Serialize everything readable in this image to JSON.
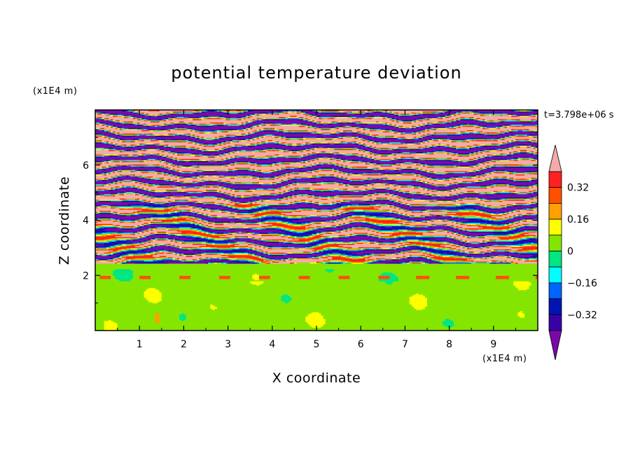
{
  "chart_data": {
    "type": "heatmap",
    "title": "potential temperature deviation",
    "xlabel": "X coordinate",
    "ylabel": "Z coordinate",
    "x_unit": "(x1E4 m)",
    "y_unit": "(x1E4 m)",
    "time_label": "t=3.798e+06 s",
    "xlim": [
      0,
      10
    ],
    "ylim": [
      0,
      8
    ],
    "x_ticks": [
      1,
      2,
      3,
      4,
      5,
      6,
      7,
      8,
      9
    ],
    "x_tick_labels": [
      "1",
      "2",
      "3",
      "4",
      "5",
      "6",
      "7",
      "8",
      "9"
    ],
    "y_ticks": [
      2,
      4,
      6
    ],
    "y_tick_labels": [
      "2",
      "4",
      "6"
    ],
    "colorbar": {
      "levels": [
        -0.4,
        -0.32,
        -0.24,
        -0.16,
        -0.08,
        0,
        0.08,
        0.16,
        0.24,
        0.32,
        0.4
      ],
      "tick_values": [
        0.32,
        0.16,
        0,
        -0.16,
        -0.32
      ],
      "tick_labels": [
        "0.32",
        "0.16",
        "0",
        "−0.16",
        "−0.32"
      ],
      "colors": [
        "#7a0aa8",
        "#3a00a8",
        "#0014b4",
        "#0064ff",
        "#00ffff",
        "#00e682",
        "#84e600",
        "#ffff00",
        "#ffa000",
        "#ff5000",
        "#ff2020",
        "#f4aaaa"
      ],
      "under_color": "#7a0aa8",
      "over_color": "#f4aaaa"
    },
    "regions": {
      "lower_layer": {
        "z_range": [
          0,
          2.4
        ],
        "dominant_values": [
          0.0,
          0.04
        ]
      },
      "transition": {
        "z": 2.4
      },
      "upper_layer": {
        "z_range": [
          2.4,
          8
        ],
        "dominant_values": [
          -0.4,
          0.4
        ]
      }
    }
  }
}
